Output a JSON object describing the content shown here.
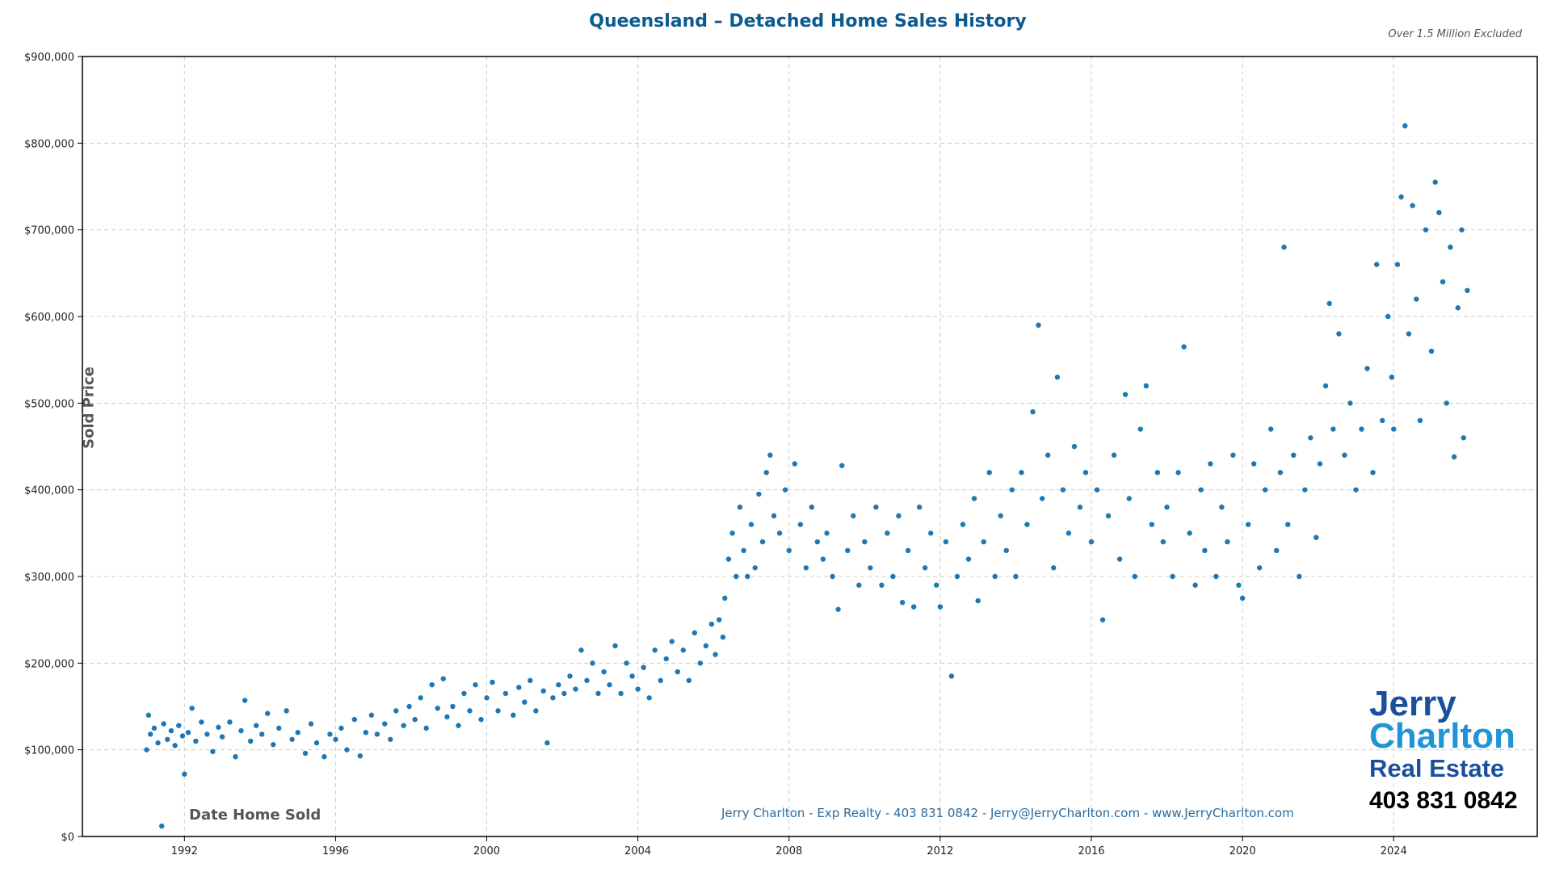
{
  "chart_data": {
    "type": "scatter",
    "title": "Queensland – Detached Home Sales History",
    "note": "Over 1.5 Million Excluded",
    "xlabel": "Date Home Sold",
    "ylabel": "Sold Price",
    "xlim": [
      1989.3,
      2027.8
    ],
    "ylim": [
      0,
      900000
    ],
    "x_ticks": [
      1992,
      1996,
      2000,
      2004,
      2008,
      2012,
      2016,
      2020,
      2024
    ],
    "y_ticks": [
      0,
      100000,
      200000,
      300000,
      400000,
      500000,
      600000,
      700000,
      800000,
      900000
    ],
    "y_tick_labels": [
      "$0",
      "$100,000",
      "$200,000",
      "$300,000",
      "$400,000",
      "$500,000",
      "$600,000",
      "$700,000",
      "$800,000",
      "$900,000"
    ],
    "grid": true,
    "marker_color": "#1f77b4",
    "points": [
      [
        1991.0,
        100000
      ],
      [
        1991.05,
        140000
      ],
      [
        1991.1,
        118000
      ],
      [
        1991.2,
        125000
      ],
      [
        1991.3,
        108000
      ],
      [
        1991.4,
        12000
      ],
      [
        1991.45,
        130000
      ],
      [
        1991.55,
        112000
      ],
      [
        1991.65,
        122000
      ],
      [
        1991.75,
        105000
      ],
      [
        1991.85,
        128000
      ],
      [
        1991.95,
        116000
      ],
      [
        1992.0,
        72000
      ],
      [
        1992.1,
        120000
      ],
      [
        1992.2,
        148000
      ],
      [
        1992.3,
        110000
      ],
      [
        1992.45,
        132000
      ],
      [
        1992.6,
        118000
      ],
      [
        1992.75,
        98000
      ],
      [
        1992.9,
        126000
      ],
      [
        1993.0,
        115000
      ],
      [
        1993.2,
        132000
      ],
      [
        1993.35,
        92000
      ],
      [
        1993.5,
        122000
      ],
      [
        1993.6,
        157000
      ],
      [
        1993.75,
        110000
      ],
      [
        1993.9,
        128000
      ],
      [
        1994.05,
        118000
      ],
      [
        1994.2,
        142000
      ],
      [
        1994.35,
        106000
      ],
      [
        1994.5,
        125000
      ],
      [
        1994.7,
        145000
      ],
      [
        1994.85,
        112000
      ],
      [
        1995.0,
        120000
      ],
      [
        1995.2,
        96000
      ],
      [
        1995.35,
        130000
      ],
      [
        1995.5,
        108000
      ],
      [
        1995.7,
        92000
      ],
      [
        1995.85,
        118000
      ],
      [
        1996.0,
        112000
      ],
      [
        1996.15,
        125000
      ],
      [
        1996.3,
        100000
      ],
      [
        1996.5,
        135000
      ],
      [
        1996.65,
        93000
      ],
      [
        1996.8,
        120000
      ],
      [
        1996.95,
        140000
      ],
      [
        1997.1,
        118000
      ],
      [
        1997.3,
        130000
      ],
      [
        1997.45,
        112000
      ],
      [
        1997.6,
        145000
      ],
      [
        1997.8,
        128000
      ],
      [
        1997.95,
        150000
      ],
      [
        1998.1,
        135000
      ],
      [
        1998.25,
        160000
      ],
      [
        1998.4,
        125000
      ],
      [
        1998.55,
        175000
      ],
      [
        1998.7,
        148000
      ],
      [
        1998.85,
        182000
      ],
      [
        1998.95,
        138000
      ],
      [
        1999.1,
        150000
      ],
      [
        1999.25,
        128000
      ],
      [
        1999.4,
        165000
      ],
      [
        1999.55,
        145000
      ],
      [
        1999.7,
        175000
      ],
      [
        1999.85,
        135000
      ],
      [
        2000.0,
        160000
      ],
      [
        2000.15,
        178000
      ],
      [
        2000.3,
        145000
      ],
      [
        2000.5,
        165000
      ],
      [
        2000.7,
        140000
      ],
      [
        2000.85,
        172000
      ],
      [
        2001.0,
        155000
      ],
      [
        2001.15,
        180000
      ],
      [
        2001.3,
        145000
      ],
      [
        2001.5,
        168000
      ],
      [
        2001.6,
        108000
      ],
      [
        2001.75,
        160000
      ],
      [
        2001.9,
        175000
      ],
      [
        2002.05,
        165000
      ],
      [
        2002.2,
        185000
      ],
      [
        2002.35,
        170000
      ],
      [
        2002.5,
        215000
      ],
      [
        2002.65,
        180000
      ],
      [
        2002.8,
        200000
      ],
      [
        2002.95,
        165000
      ],
      [
        2003.1,
        190000
      ],
      [
        2003.25,
        175000
      ],
      [
        2003.4,
        220000
      ],
      [
        2003.55,
        165000
      ],
      [
        2003.7,
        200000
      ],
      [
        2003.85,
        185000
      ],
      [
        2004.0,
        170000
      ],
      [
        2004.15,
        195000
      ],
      [
        2004.3,
        160000
      ],
      [
        2004.45,
        215000
      ],
      [
        2004.6,
        180000
      ],
      [
        2004.75,
        205000
      ],
      [
        2004.9,
        225000
      ],
      [
        2005.05,
        190000
      ],
      [
        2005.2,
        215000
      ],
      [
        2005.35,
        180000
      ],
      [
        2005.5,
        235000
      ],
      [
        2005.65,
        200000
      ],
      [
        2005.8,
        220000
      ],
      [
        2005.95,
        245000
      ],
      [
        2006.05,
        210000
      ],
      [
        2006.15,
        250000
      ],
      [
        2006.25,
        230000
      ],
      [
        2006.3,
        275000
      ],
      [
        2006.4,
        320000
      ],
      [
        2006.5,
        350000
      ],
      [
        2006.6,
        300000
      ],
      [
        2006.7,
        380000
      ],
      [
        2006.8,
        330000
      ],
      [
        2006.9,
        300000
      ],
      [
        2007.0,
        360000
      ],
      [
        2007.1,
        310000
      ],
      [
        2007.2,
        395000
      ],
      [
        2007.3,
        340000
      ],
      [
        2007.4,
        420000
      ],
      [
        2007.5,
        440000
      ],
      [
        2007.6,
        370000
      ],
      [
        2007.75,
        350000
      ],
      [
        2007.9,
        400000
      ],
      [
        2008.0,
        330000
      ],
      [
        2008.15,
        430000
      ],
      [
        2008.3,
        360000
      ],
      [
        2008.45,
        310000
      ],
      [
        2008.6,
        380000
      ],
      [
        2008.75,
        340000
      ],
      [
        2008.9,
        320000
      ],
      [
        2009.0,
        350000
      ],
      [
        2009.15,
        300000
      ],
      [
        2009.3,
        262000
      ],
      [
        2009.4,
        428000
      ],
      [
        2009.55,
        330000
      ],
      [
        2009.7,
        370000
      ],
      [
        2009.85,
        290000
      ],
      [
        2010.0,
        340000
      ],
      [
        2010.15,
        310000
      ],
      [
        2010.3,
        380000
      ],
      [
        2010.45,
        290000
      ],
      [
        2010.6,
        350000
      ],
      [
        2010.75,
        300000
      ],
      [
        2010.9,
        370000
      ],
      [
        2011.0,
        270000
      ],
      [
        2011.15,
        330000
      ],
      [
        2011.3,
        265000
      ],
      [
        2011.45,
        380000
      ],
      [
        2011.6,
        310000
      ],
      [
        2011.75,
        350000
      ],
      [
        2011.9,
        290000
      ],
      [
        2012.0,
        265000
      ],
      [
        2012.15,
        340000
      ],
      [
        2012.3,
        185000
      ],
      [
        2012.45,
        300000
      ],
      [
        2012.6,
        360000
      ],
      [
        2012.75,
        320000
      ],
      [
        2012.9,
        390000
      ],
      [
        2013.0,
        272000
      ],
      [
        2013.15,
        340000
      ],
      [
        2013.3,
        420000
      ],
      [
        2013.45,
        300000
      ],
      [
        2013.6,
        370000
      ],
      [
        2013.75,
        330000
      ],
      [
        2013.9,
        400000
      ],
      [
        2014.0,
        300000
      ],
      [
        2014.15,
        420000
      ],
      [
        2014.3,
        360000
      ],
      [
        2014.45,
        490000
      ],
      [
        2014.6,
        590000
      ],
      [
        2014.7,
        390000
      ],
      [
        2014.85,
        440000
      ],
      [
        2015.0,
        310000
      ],
      [
        2015.1,
        530000
      ],
      [
        2015.25,
        400000
      ],
      [
        2015.4,
        350000
      ],
      [
        2015.55,
        450000
      ],
      [
        2015.7,
        380000
      ],
      [
        2015.85,
        420000
      ],
      [
        2016.0,
        340000
      ],
      [
        2016.15,
        400000
      ],
      [
        2016.3,
        250000
      ],
      [
        2016.45,
        370000
      ],
      [
        2016.6,
        440000
      ],
      [
        2016.75,
        320000
      ],
      [
        2016.9,
        510000
      ],
      [
        2017.0,
        390000
      ],
      [
        2017.15,
        300000
      ],
      [
        2017.3,
        470000
      ],
      [
        2017.45,
        520000
      ],
      [
        2017.6,
        360000
      ],
      [
        2017.75,
        420000
      ],
      [
        2017.9,
        340000
      ],
      [
        2018.0,
        380000
      ],
      [
        2018.15,
        300000
      ],
      [
        2018.3,
        420000
      ],
      [
        2018.45,
        565000
      ],
      [
        2018.6,
        350000
      ],
      [
        2018.75,
        290000
      ],
      [
        2018.9,
        400000
      ],
      [
        2019.0,
        330000
      ],
      [
        2019.15,
        430000
      ],
      [
        2019.3,
        300000
      ],
      [
        2019.45,
        380000
      ],
      [
        2019.6,
        340000
      ],
      [
        2019.75,
        440000
      ],
      [
        2019.9,
        290000
      ],
      [
        2020.0,
        275000
      ],
      [
        2020.15,
        360000
      ],
      [
        2020.3,
        430000
      ],
      [
        2020.45,
        310000
      ],
      [
        2020.6,
        400000
      ],
      [
        2020.75,
        470000
      ],
      [
        2020.9,
        330000
      ],
      [
        2021.0,
        420000
      ],
      [
        2021.1,
        680000
      ],
      [
        2021.2,
        360000
      ],
      [
        2021.35,
        440000
      ],
      [
        2021.5,
        300000
      ],
      [
        2021.65,
        400000
      ],
      [
        2021.8,
        460000
      ],
      [
        2021.95,
        345000
      ],
      [
        2022.05,
        430000
      ],
      [
        2022.2,
        520000
      ],
      [
        2022.3,
        615000
      ],
      [
        2022.4,
        470000
      ],
      [
        2022.55,
        580000
      ],
      [
        2022.7,
        440000
      ],
      [
        2022.85,
        500000
      ],
      [
        2023.0,
        400000
      ],
      [
        2023.15,
        470000
      ],
      [
        2023.3,
        540000
      ],
      [
        2023.45,
        420000
      ],
      [
        2023.55,
        660000
      ],
      [
        2023.7,
        480000
      ],
      [
        2023.85,
        600000
      ],
      [
        2023.95,
        530000
      ],
      [
        2024.0,
        470000
      ],
      [
        2024.1,
        660000
      ],
      [
        2024.2,
        738000
      ],
      [
        2024.3,
        820000
      ],
      [
        2024.4,
        580000
      ],
      [
        2024.5,
        728000
      ],
      [
        2024.6,
        620000
      ],
      [
        2024.7,
        480000
      ],
      [
        2024.85,
        700000
      ],
      [
        2025.0,
        560000
      ],
      [
        2025.1,
        755000
      ],
      [
        2025.2,
        720000
      ],
      [
        2025.3,
        640000
      ],
      [
        2025.4,
        500000
      ],
      [
        2025.5,
        680000
      ],
      [
        2025.6,
        438000
      ],
      [
        2025.7,
        610000
      ],
      [
        2025.8,
        700000
      ],
      [
        2025.85,
        460000
      ],
      [
        2025.95,
        630000
      ]
    ]
  },
  "footer": "Jerry Charlton - Exp Realty - 403 831 0842 - Jerry@JerryCharlton.com - www.JerryCharlton.com",
  "logo": {
    "line1": "Jerry",
    "line2": "Charlton",
    "line3": "Real Estate",
    "phone": "403 831 0842"
  }
}
